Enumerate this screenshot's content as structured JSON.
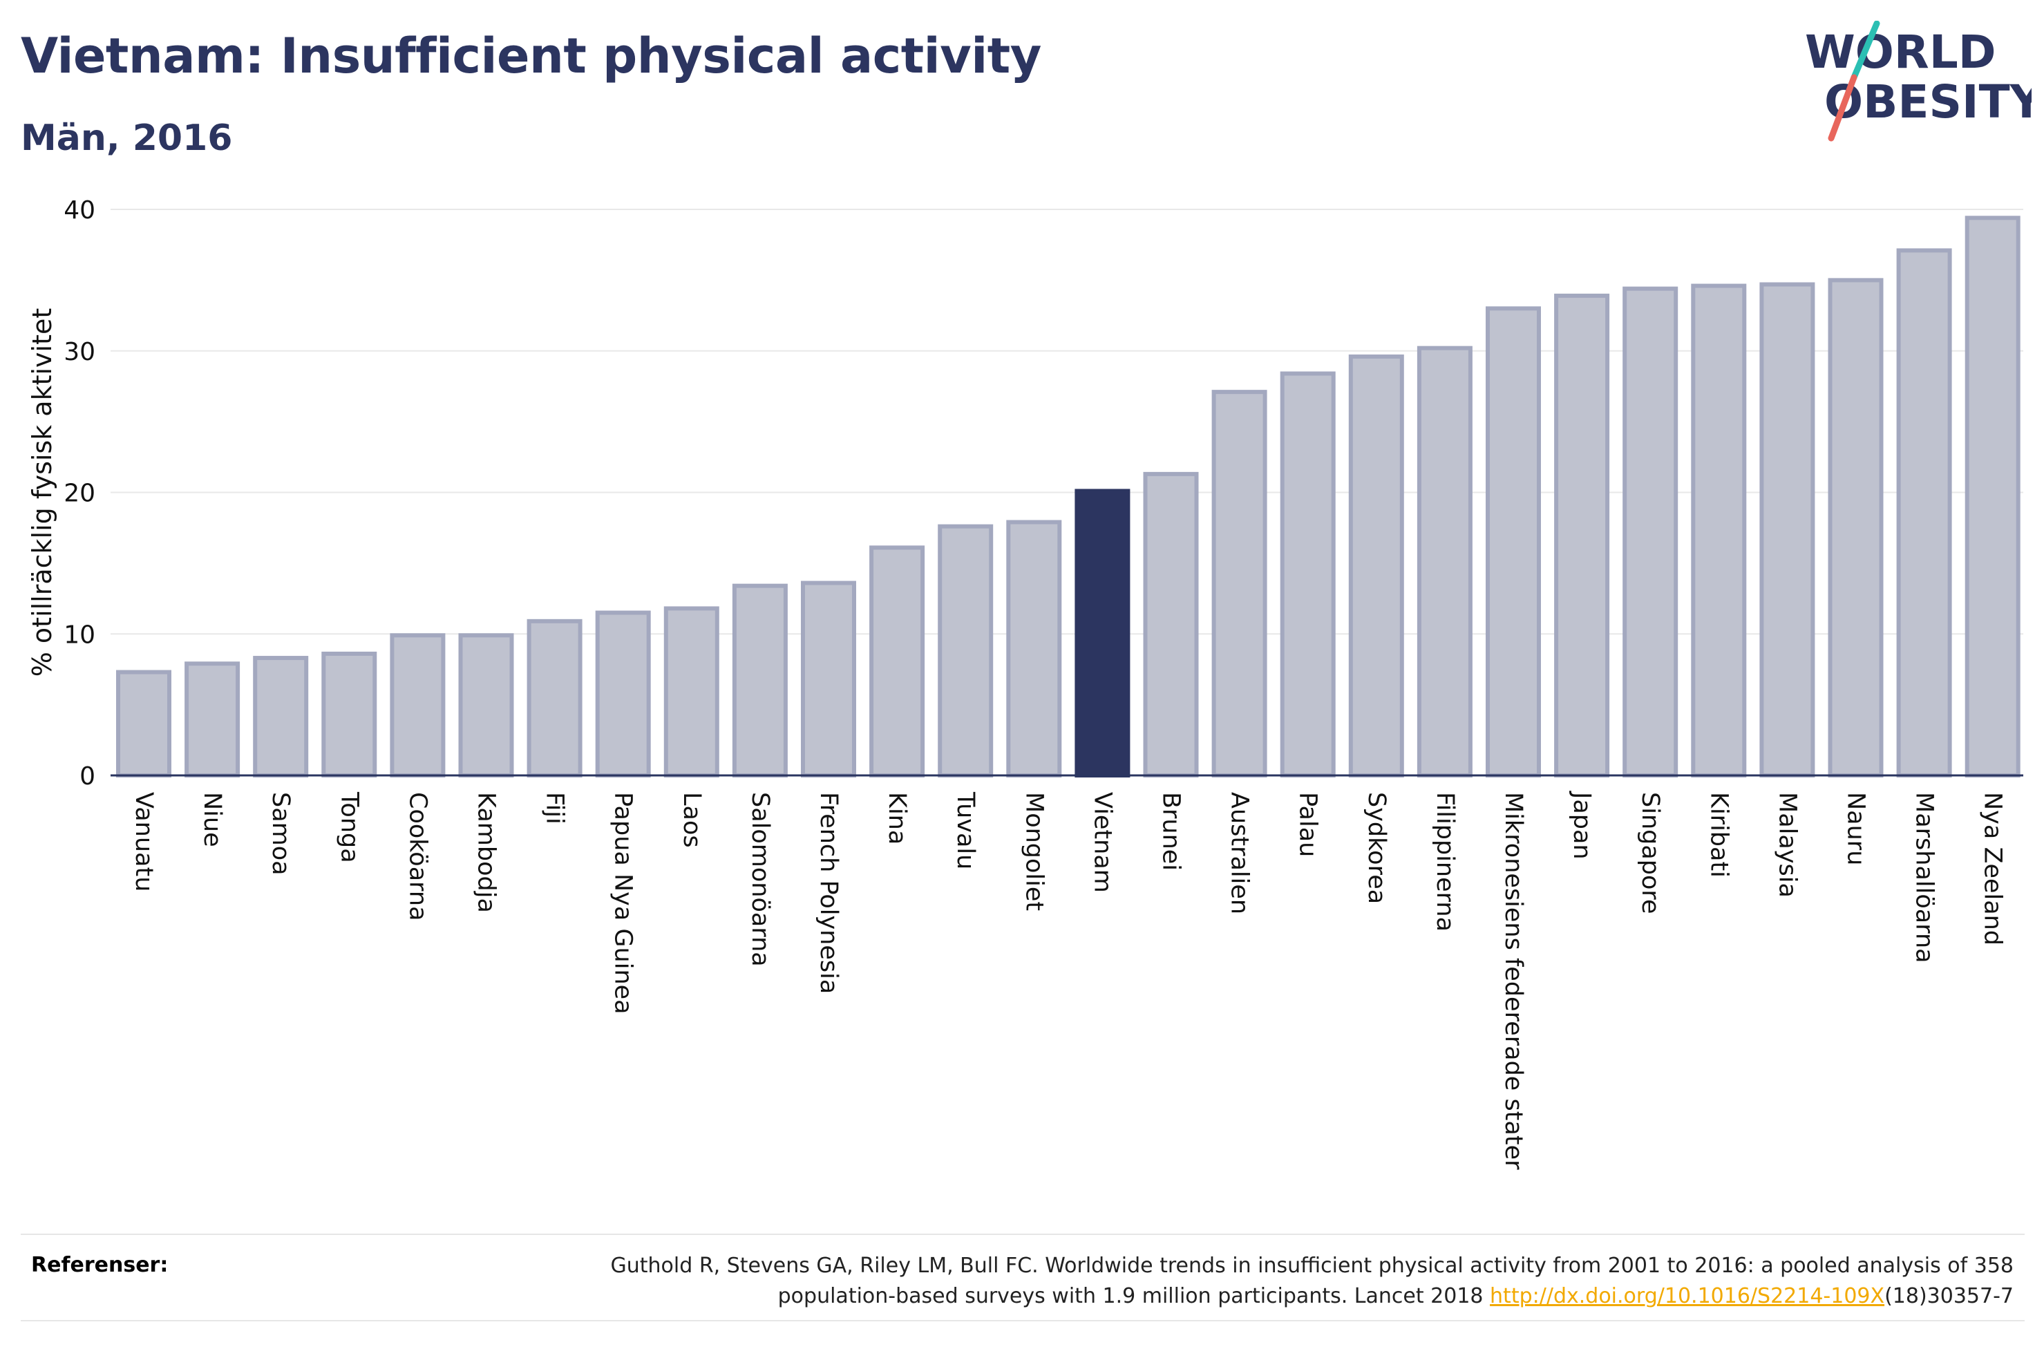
{
  "header": {
    "title": "Vietnam: Insufficient physical activity",
    "subtitle": "Män, 2016"
  },
  "logo": {
    "line1": "WORLD",
    "line2": "OBESITY",
    "colors": {
      "text": "#2c3560",
      "slash_top": "#2bbfb3",
      "slash_bottom": "#e8665c"
    }
  },
  "chart_data": {
    "type": "bar",
    "title": "Vietnam: Insufficient physical activity",
    "subtitle": "Män, 2016",
    "xlabel": "",
    "ylabel": "% otillräcklig fysisk aktivitet",
    "ylim": [
      0,
      40
    ],
    "yticks": [
      0,
      10,
      20,
      30,
      40
    ],
    "grid": true,
    "highlight": "Vietnam",
    "colors": {
      "bar": "#bfc2cf",
      "bar_edge": "#a3a8bf",
      "highlight": "#2c3560",
      "grid": "#e8e8e8",
      "axis": "#2a3560"
    },
    "categories": [
      "Vanuatu",
      "Niue",
      "Samoa",
      "Tonga",
      "Cooköarna",
      "Kambodja",
      "Fiji",
      "Papua Nya Guinea",
      "Laos",
      "Salomonöarna",
      "French Polynesia",
      "Kina",
      "Tuvalu",
      "Mongoliet",
      "Vietnam",
      "Brunei",
      "Australien",
      "Palau",
      "Sydkorea",
      "Filippinerna",
      "Mikronesiens federerade stater",
      "Japan",
      "Singapore",
      "Kiribati",
      "Malaysia",
      "Nauru",
      "Marshallöarna",
      "Nya Zeeland"
    ],
    "values": [
      7.3,
      7.9,
      8.3,
      8.6,
      9.9,
      9.9,
      10.9,
      11.5,
      11.8,
      13.4,
      13.6,
      16.1,
      17.6,
      17.9,
      20.1,
      21.3,
      27.1,
      28.4,
      29.6,
      30.2,
      33.0,
      33.9,
      34.4,
      34.6,
      34.7,
      35.0,
      37.1,
      39.4
    ]
  },
  "references": {
    "label": "Referenser:",
    "text_line1": "Guthold R, Stevens GA, Riley LM, Bull FC. Worldwide trends in insufficient physical activity from 2001 to 2016: a pooled analysis of 358",
    "text_line2_prefix": "population-based surveys with 1.9 million participants. Lancet 2018 ",
    "link_text": "http://dx.doi.org/10.1016/S2214-109X",
    "text_suffix": "(18)30357-7"
  }
}
